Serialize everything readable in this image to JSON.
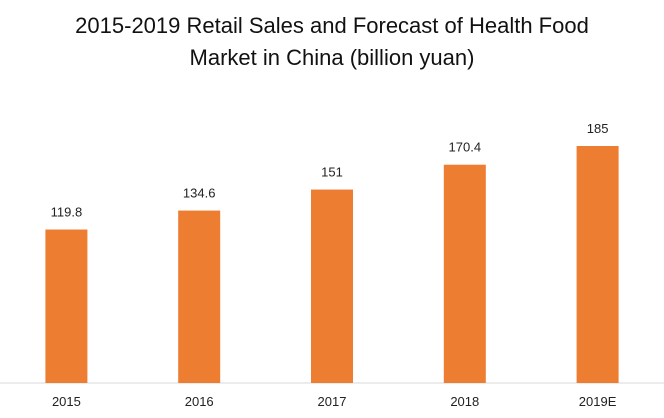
{
  "chart_data": {
    "type": "bar",
    "title": "2015-2019 Retail Sales and Forecast of Health Food Market in China (billion yuan)",
    "categories": [
      "2015",
      "2016",
      "2017",
      "2018",
      "2019E"
    ],
    "values": [
      119.8,
      134.6,
      151,
      170.4,
      185
    ],
    "color": "#ed7d31"
  }
}
